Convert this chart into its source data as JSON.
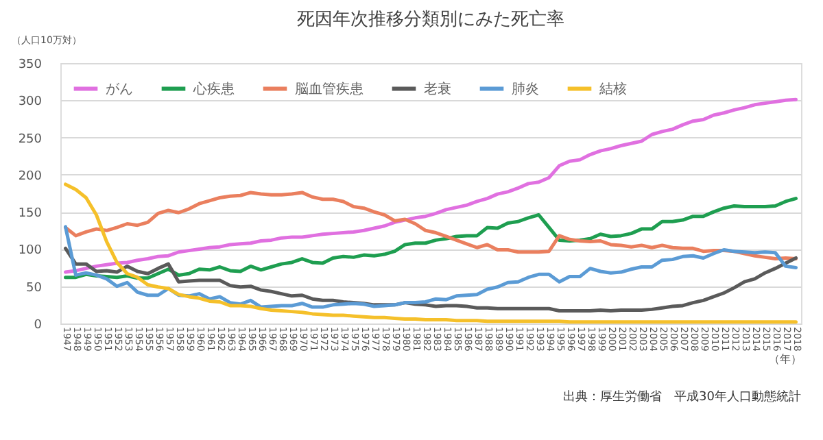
{
  "chart_data": {
    "type": "line",
    "title": "死因年次推移分類別にみた死亡率",
    "ylabel": "（人口10万対）",
    "xlabel": "（年）",
    "categories": [
      "1947",
      "1948",
      "1949",
      "1950",
      "1951",
      "1952",
      "1953",
      "1954",
      "1955",
      "1956",
      "1957",
      "1958",
      "1959",
      "1960",
      "1961",
      "1962",
      "1963",
      "1964",
      "1965",
      "1966",
      "1967",
      "1968",
      "1969",
      "1970",
      "1971",
      "1972",
      "1973",
      "1974",
      "1975",
      "1976",
      "1977",
      "1978",
      "1979",
      "1980",
      "1981",
      "1982",
      "1983",
      "1984",
      "1985",
      "1986",
      "1987",
      "1988",
      "1989",
      "1990",
      "1991",
      "1992",
      "1993",
      "1994",
      "1995",
      "1996",
      "1997",
      "1998",
      "1999",
      "2000",
      "2001",
      "2002",
      "2003",
      "2004",
      "2005",
      "2006",
      "2007",
      "2008",
      "2009",
      "2010",
      "2011",
      "2012",
      "2013",
      "2014",
      "2015",
      "2016",
      "2017",
      "2018"
    ],
    "series": [
      {
        "name": "がん",
        "color": "#e070e0",
        "values": [
          69,
          71,
          74,
          77,
          79,
          81,
          82,
          85,
          87,
          90,
          91,
          96,
          98,
          100,
          102,
          103,
          106,
          107,
          108,
          111,
          112,
          115,
          116,
          116,
          118,
          120,
          121,
          122,
          123,
          125,
          128,
          131,
          136,
          139,
          142,
          144,
          148,
          153,
          156,
          159,
          164,
          168,
          174,
          177,
          182,
          188,
          190,
          196,
          212,
          218,
          220,
          227,
          232,
          235,
          239,
          242,
          245,
          254,
          258,
          261,
          267,
          272,
          274,
          280,
          283,
          287,
          290,
          294,
          296,
          298,
          300,
          301
        ]
      },
      {
        "name": "心疾患",
        "color": "#1e9e50",
        "values": [
          62,
          62,
          66,
          64,
          63,
          62,
          64,
          61,
          61,
          67,
          73,
          65,
          67,
          73,
          72,
          76,
          71,
          70,
          77,
          72,
          76,
          80,
          82,
          87,
          82,
          81,
          88,
          90,
          89,
          92,
          91,
          93,
          97,
          106,
          108,
          108,
          112,
          114,
          117,
          118,
          118,
          129,
          128,
          135,
          137,
          142,
          146,
          129,
          112,
          111,
          112,
          114,
          120,
          117,
          118,
          121,
          127,
          127,
          137,
          137,
          139,
          144,
          144,
          150,
          155,
          158,
          157,
          157,
          157,
          158,
          164,
          168
        ]
      },
      {
        "name": "脳血管疾患",
        "color": "#ea7f5e",
        "values": [
          129,
          118,
          123,
          127,
          125,
          129,
          134,
          132,
          136,
          148,
          152,
          149,
          154,
          161,
          165,
          169,
          171,
          172,
          176,
          174,
          173,
          173,
          174,
          176,
          170,
          167,
          167,
          164,
          157,
          155,
          150,
          146,
          138,
          140,
          134,
          125,
          122,
          117,
          112,
          107,
          102,
          106,
          99,
          99,
          96,
          96,
          96,
          97,
          118,
          113,
          111,
          110,
          111,
          106,
          105,
          103,
          105,
          102,
          105,
          102,
          101,
          101,
          97,
          98,
          98,
          97,
          94,
          91,
          89,
          87,
          88,
          87
        ]
      },
      {
        "name": "老衰",
        "color": "#5a5a5a",
        "values": [
          101,
          80,
          80,
          70,
          71,
          69,
          77,
          70,
          67,
          74,
          80,
          56,
          57,
          58,
          58,
          58,
          51,
          49,
          50,
          45,
          43,
          40,
          37,
          38,
          33,
          31,
          31,
          29,
          28,
          27,
          25,
          25,
          25,
          28,
          26,
          25,
          23,
          24,
          24,
          23,
          21,
          21,
          20,
          20,
          20,
          20,
          20,
          20,
          17,
          17,
          17,
          17,
          18,
          17,
          18,
          18,
          18,
          19,
          21,
          23,
          24,
          28,
          31,
          36,
          41,
          48,
          56,
          60,
          68,
          74,
          81,
          88
        ]
      },
      {
        "name": "肺炎",
        "color": "#5b9bd5",
        "values": [
          130,
          65,
          68,
          65,
          60,
          50,
          55,
          42,
          38,
          38,
          47,
          38,
          37,
          40,
          33,
          36,
          28,
          26,
          31,
          22,
          23,
          24,
          24,
          27,
          22,
          22,
          25,
          26,
          27,
          26,
          23,
          24,
          25,
          28,
          28,
          29,
          33,
          32,
          37,
          38,
          39,
          46,
          49,
          55,
          56,
          62,
          66,
          66,
          56,
          63,
          63,
          74,
          70,
          68,
          69,
          73,
          76,
          76,
          85,
          86,
          90,
          91,
          88,
          94,
          99,
          97,
          96,
          95,
          96,
          95,
          77,
          75
        ]
      },
      {
        "name": "結核",
        "color": "#f5c02a",
        "values": [
          187,
          180,
          169,
          146,
          110,
          82,
          67,
          62,
          52,
          49,
          47,
          39,
          36,
          34,
          30,
          29,
          24,
          24,
          23,
          20,
          18,
          17,
          16,
          15,
          13,
          12,
          11,
          11,
          10,
          9,
          8,
          8,
          7,
          6,
          6,
          5,
          5,
          5,
          4,
          4,
          4,
          3,
          3,
          3,
          3,
          3,
          3,
          3,
          3,
          2,
          2,
          2,
          2,
          2,
          2,
          2,
          2,
          2,
          2,
          2,
          2,
          2,
          2,
          2,
          2,
          2,
          2,
          2,
          2,
          2,
          2,
          2
        ]
      }
    ],
    "ylim": [
      0,
      350
    ],
    "yticks": [
      0,
      50,
      100,
      150,
      200,
      250,
      300,
      350
    ],
    "grid": "y",
    "legend": "top left",
    "marker": "none",
    "line_style": "solid",
    "annotations": [
      "出典：厚生労働省　平成30年人口動態統計"
    ]
  }
}
